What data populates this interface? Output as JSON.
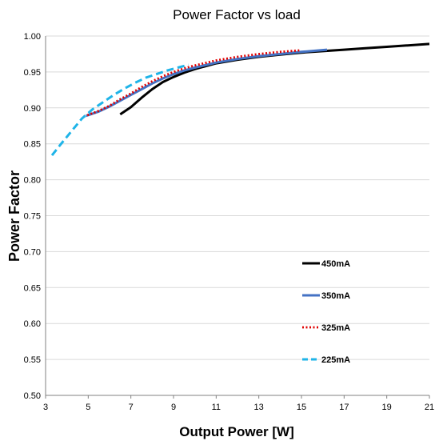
{
  "chart_data": {
    "type": "line",
    "title": "Power Factor vs load",
    "xlabel": "Output Power [W]",
    "ylabel": "Power Factor",
    "xlim": [
      3,
      21
    ],
    "ylim": [
      0.5,
      1.0
    ],
    "x_ticks": [
      "3",
      "5",
      "7",
      "9",
      "11",
      "13",
      "15",
      "17",
      "19",
      "21"
    ],
    "y_ticks": [
      "0.50",
      "0.55",
      "0.60",
      "0.65",
      "0.70",
      "0.75",
      "0.80",
      "0.85",
      "0.90",
      "0.95",
      "1.00"
    ],
    "grid": "horizontal",
    "legend_position": "bottom-right",
    "series": [
      {
        "name": "450mA",
        "color": "#000000",
        "style": "solid",
        "x": [
          6.5,
          7.0,
          7.5,
          8.0,
          8.5,
          9.0,
          9.5,
          10.0,
          11.0,
          12.0,
          13.0,
          14.0,
          15.0,
          16.0,
          17.0,
          18.0,
          19.0,
          20.0,
          21.0
        ],
        "y": [
          0.891,
          0.901,
          0.914,
          0.926,
          0.936,
          0.943,
          0.949,
          0.954,
          0.962,
          0.967,
          0.971,
          0.974,
          0.977,
          0.979,
          0.981,
          0.983,
          0.985,
          0.987,
          0.989
        ]
      },
      {
        "name": "350mA",
        "color": "#4472C4",
        "style": "solid",
        "x": [
          4.9,
          5.5,
          6.0,
          6.5,
          7.0,
          7.5,
          8.0,
          8.5,
          9.0,
          9.5,
          10.0,
          11.0,
          12.0,
          13.0,
          14.0,
          15.0,
          16.2
        ],
        "y": [
          0.889,
          0.895,
          0.902,
          0.91,
          0.918,
          0.926,
          0.934,
          0.941,
          0.947,
          0.952,
          0.956,
          0.963,
          0.968,
          0.972,
          0.975,
          0.978,
          0.981
        ]
      },
      {
        "name": "325mA",
        "color": "#E00000",
        "style": "dotted",
        "x": [
          4.8,
          5.5,
          6.0,
          6.5,
          7.0,
          7.5,
          8.0,
          8.5,
          9.0,
          9.5,
          10.0,
          11.0,
          12.0,
          13.0,
          14.0,
          14.9
        ],
        "y": [
          0.888,
          0.896,
          0.903,
          0.912,
          0.92,
          0.929,
          0.937,
          0.944,
          0.95,
          0.955,
          0.959,
          0.966,
          0.971,
          0.975,
          0.978,
          0.98
        ]
      },
      {
        "name": "225mA",
        "color": "#1FB4E8",
        "style": "dashed",
        "x": [
          3.3,
          3.7,
          4.2,
          4.7,
          5.2,
          5.7,
          6.2,
          6.7,
          7.2,
          7.7,
          8.2,
          8.7,
          9.2,
          9.7
        ],
        "y": [
          0.834,
          0.849,
          0.867,
          0.885,
          0.898,
          0.908,
          0.918,
          0.927,
          0.935,
          0.942,
          0.947,
          0.952,
          0.956,
          0.96
        ]
      }
    ]
  }
}
